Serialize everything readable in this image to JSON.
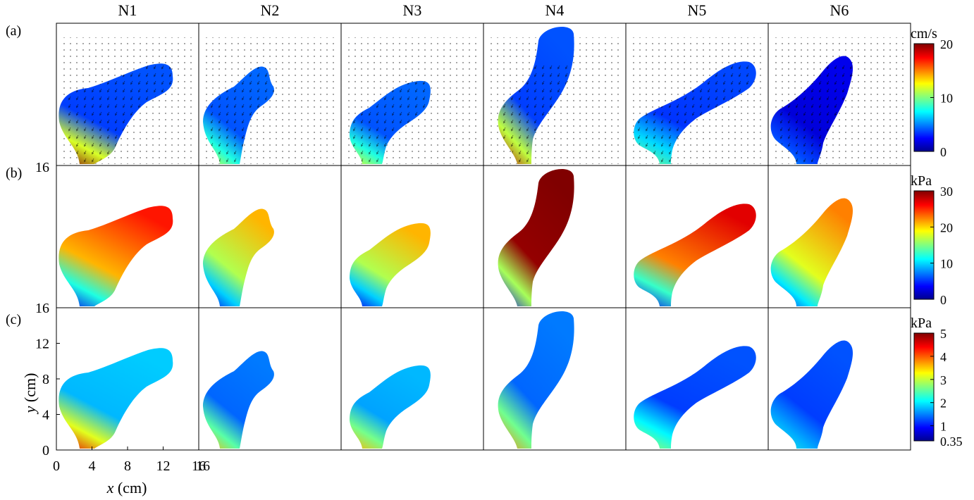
{
  "columns": [
    "N1",
    "N2",
    "N3",
    "N4",
    "N5",
    "N6"
  ],
  "row_labels": [
    "(a)",
    "(b)",
    "(c)"
  ],
  "axes": {
    "x_label": "x (cm)",
    "x_var": "x",
    "x_unit": "(cm)",
    "y_label": "y (cm)",
    "y_var": "y",
    "y_unit": "(cm)",
    "x_ticks": [
      "0",
      "4",
      "8",
      "12",
      "16"
    ],
    "x_extra_tick": "16",
    "y_ticks": [
      "0",
      "4",
      "8",
      "12",
      "16"
    ],
    "y_extra_tick": "16"
  },
  "colorbars": [
    {
      "unit": "cm/s",
      "ticks": [
        "0",
        "10",
        "20"
      ]
    },
    {
      "unit": "kPa",
      "ticks": [
        "0",
        "10",
        "20",
        "30"
      ]
    },
    {
      "unit": "kPa",
      "ticks": [
        "0.35",
        "1",
        "2",
        "3",
        "4",
        "5"
      ]
    }
  ],
  "colors": {
    "jet": [
      "#00008f",
      "#0000ff",
      "#0080ff",
      "#00ffff",
      "#80ff80",
      "#ffff00",
      "#ff8000",
      "#ff0000",
      "#800000"
    ]
  },
  "chart_data": {
    "type": "heatmap",
    "rows": [
      {
        "row": "(a)",
        "quantity": "velocity",
        "unit": "cm/s",
        "range": [
          0,
          20
        ],
        "body_level": [
          0.18,
          0.2,
          0.2,
          0.18,
          0.17,
          0.08
        ],
        "inlet_level": [
          1.0,
          0.6,
          0.6,
          0.95,
          0.5,
          0.3
        ],
        "arrows": true
      },
      {
        "row": "(b)",
        "quantity": "pressure",
        "unit": "kPa",
        "range": [
          0,
          30
        ],
        "body_level": [
          0.7,
          0.55,
          0.55,
          0.98,
          0.75,
          0.6
        ],
        "inlet_level": [
          0.1,
          0.1,
          0.1,
          0.1,
          0.1,
          0.1
        ],
        "arrows": false
      },
      {
        "row": "(c)",
        "quantity": "pressure",
        "unit": "kPa",
        "range": [
          0.35,
          5
        ],
        "body_level": [
          0.3,
          0.22,
          0.28,
          0.22,
          0.18,
          0.18
        ],
        "inlet_level": [
          0.9,
          0.7,
          0.7,
          0.75,
          0.55,
          0.4
        ],
        "arrows": false
      }
    ],
    "x_range": [
      0,
      16
    ],
    "y_range": [
      0,
      16
    ]
  }
}
